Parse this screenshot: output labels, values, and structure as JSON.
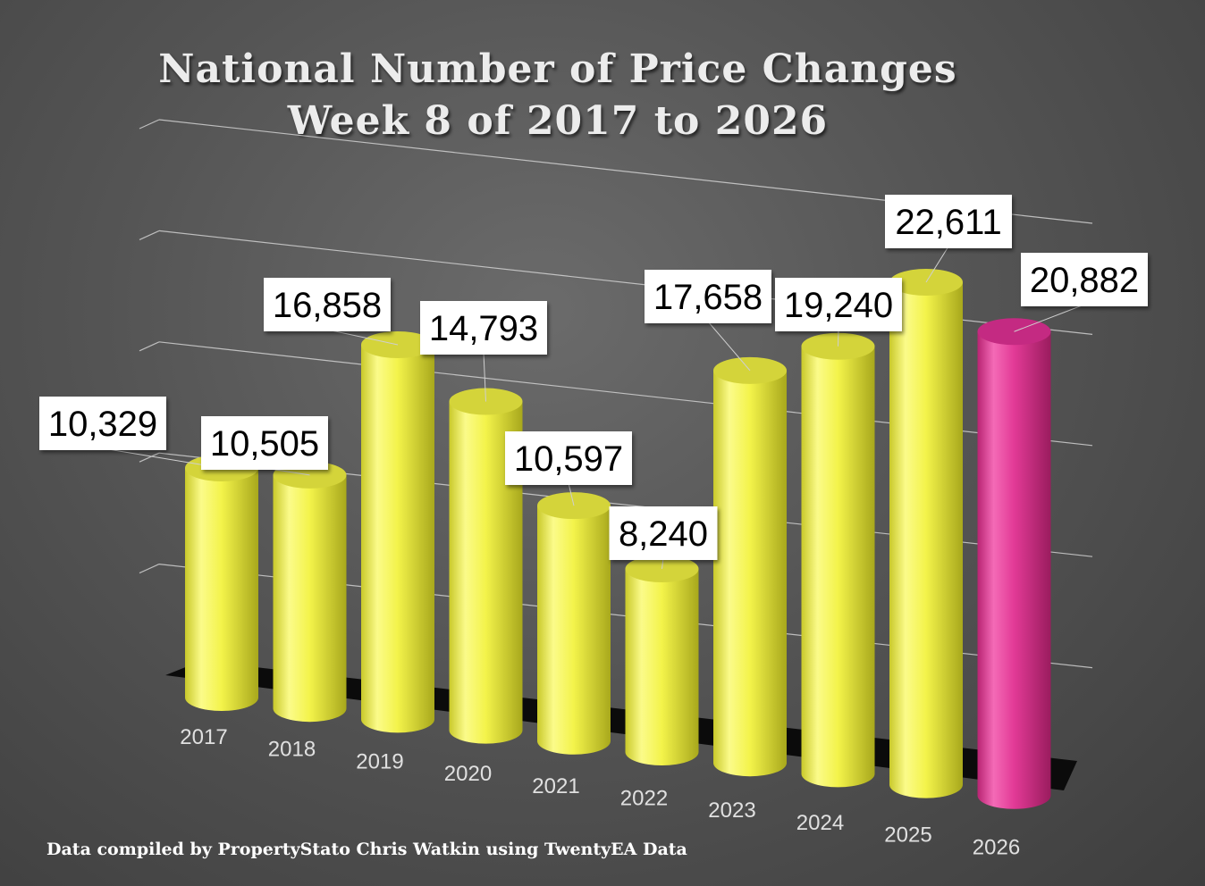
{
  "colors": {
    "bar": "#f3f34a",
    "highlight": "#e23a96",
    "label_bg": "#ffffff",
    "label_text": "#000000",
    "axis_text": "#e0e0e0",
    "gridline": "#d8d8d8"
  },
  "chart_data": {
    "type": "bar",
    "style": "3d-cylinder",
    "title": "National Number of Price Changes",
    "subtitle": "Week 8 of 2017 to 2026",
    "categories": [
      "2017",
      "2018",
      "2019",
      "2020",
      "2021",
      "2022",
      "2023",
      "2024",
      "2025",
      "2026"
    ],
    "values": [
      10329,
      10505,
      16858,
      14793,
      10597,
      8240,
      17658,
      19240,
      22611,
      20882
    ],
    "data_labels": [
      "10,329",
      "10,505",
      "16,858",
      "14,793",
      "10,597",
      "8,240",
      "17,658",
      "19,240",
      "22,611",
      "20,882"
    ],
    "highlighted_category": "2026",
    "ylim": [
      0,
      25000
    ],
    "grid": true
  },
  "footer": "Data compiled by PropertyStato Chris Watkin using TwentyEA Data"
}
